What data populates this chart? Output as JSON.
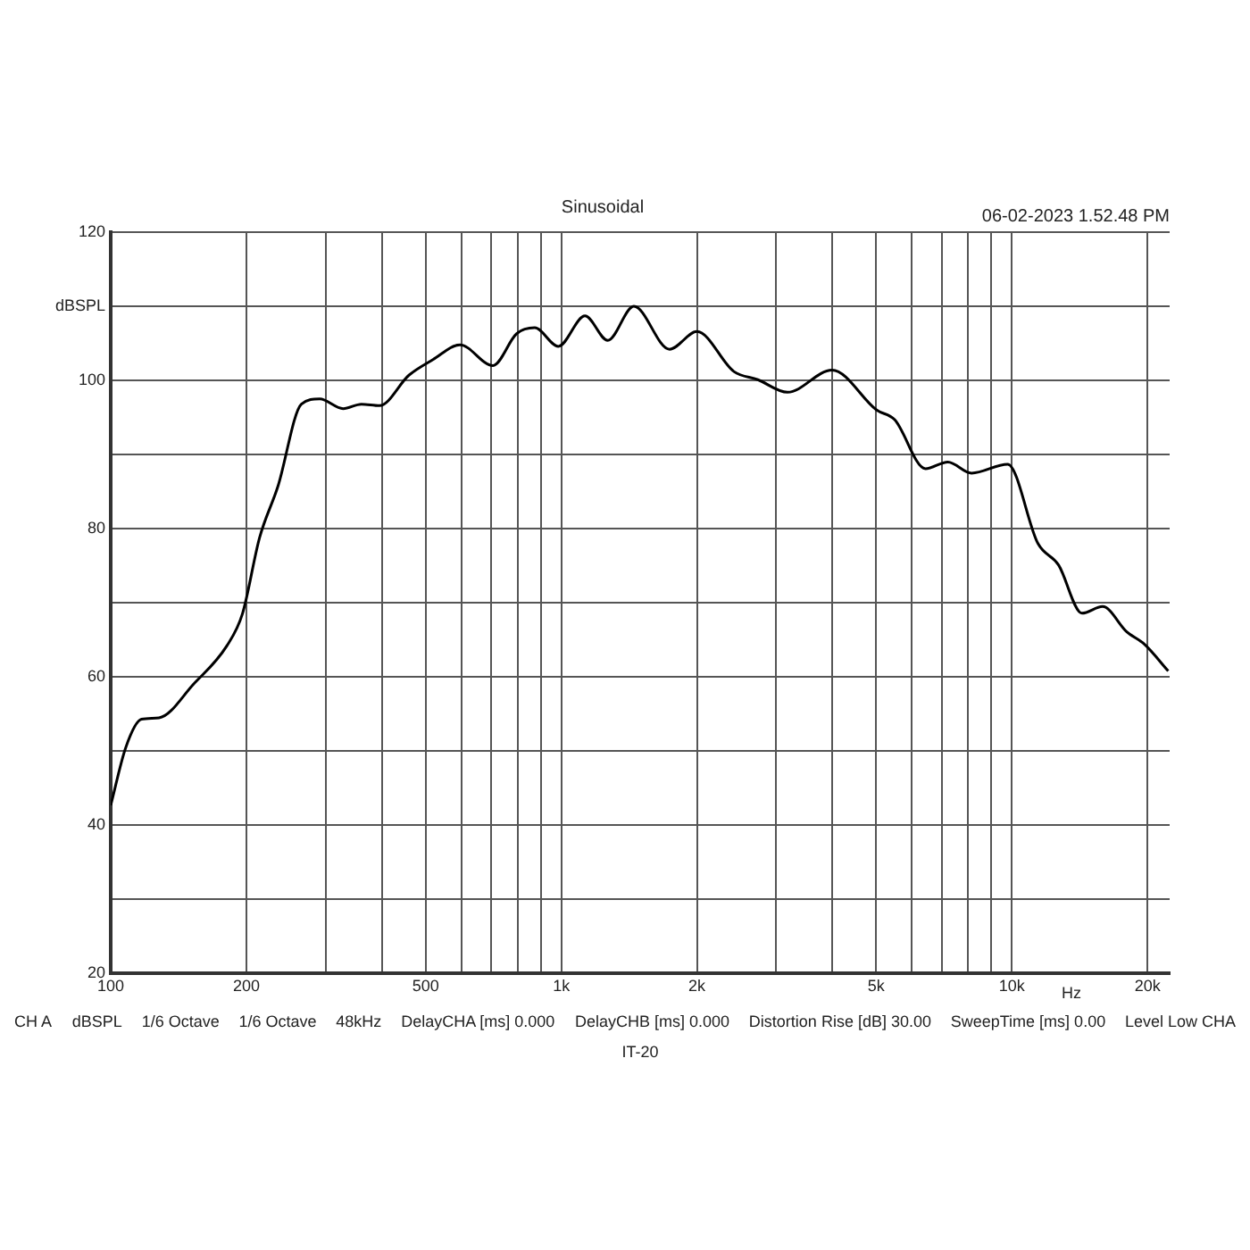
{
  "chart_data": {
    "type": "line",
    "title": "Sinusoidal",
    "xlabel": "Hz",
    "log": "x",
    "grid": true,
    "legend": false,
    "marker": "none",
    "line_style": "solid",
    "annotations": [
      "06-02-2023 1.52.48 PM",
      "CH A",
      "dBSPL",
      "1/6 Octave",
      "1/6 Octave",
      "48kHz",
      "DelayCHA [ms] 0.000",
      "DelayCHB [ms] 0.000",
      "Distortion Rise [dB] 30.00",
      "SweepTime [ms] 0.00",
      "Level Low CHA",
      "IT-20"
    ],
    "xlim": [
      100,
      22400
    ],
    "ylim": [
      20,
      120
    ],
    "xticks": [
      100,
      200,
      {
        "value": 300,
        "label": null
      },
      {
        "value": 400,
        "label": null
      },
      500,
      {
        "value": 600,
        "label": null
      },
      {
        "value": 700,
        "label": null
      },
      {
        "value": 800,
        "label": null
      },
      {
        "value": 900,
        "label": null
      },
      {
        "value": 1000,
        "label": "1k"
      },
      {
        "value": 2000,
        "label": "2k"
      },
      {
        "value": 3000,
        "label": null
      },
      {
        "value": 4000,
        "label": null
      },
      {
        "value": 5000,
        "label": "5k"
      },
      {
        "value": 6000,
        "label": null
      },
      {
        "value": 7000,
        "label": null
      },
      {
        "value": 8000,
        "label": null
      },
      {
        "value": 9000,
        "label": null
      },
      {
        "value": 10000,
        "label": "10k"
      },
      {
        "value": 20000,
        "label": "20k"
      }
    ],
    "yticks": [
      20,
      {
        "value": 30,
        "label": null
      },
      40,
      {
        "value": 50,
        "label": null
      },
      60,
      {
        "value": 70,
        "label": null
      },
      80,
      {
        "value": 90,
        "label": null
      },
      100,
      {
        "value": 110,
        "label": "dBSPL"
      },
      120
    ],
    "series": [
      {
        "color": "#000000",
        "x": [
          100,
          108,
          117,
          128,
          153,
          181,
          196,
          214,
          235,
          265,
          291,
          328,
          360,
          395,
          459,
          519,
          596,
          705,
          796,
          873,
          985,
          1129,
          1268,
          1449,
          1739,
          2000,
          2416,
          2730,
          3177,
          3990,
          5013,
          5495,
          6430,
          7210,
          8140,
          9790,
          11430,
          12700,
          14310,
          15900,
          17990,
          19700,
          22240
        ],
        "values": [
          42.7,
          50.5,
          54.3,
          54.5,
          59.1,
          64.2,
          68.5,
          78.8,
          85.7,
          96.8,
          97.5,
          96.2,
          96.8,
          96.6,
          100.7,
          102.8,
          104.8,
          102.0,
          106.3,
          107.1,
          104.6,
          108.7,
          105.4,
          110.0,
          104.2,
          106.6,
          101.2,
          100.1,
          98.4,
          101.4,
          96.0,
          94.7,
          88.1,
          89.0,
          87.5,
          88.7,
          78.0,
          75.1,
          68.6,
          69.5,
          66.1,
          64.4,
          60.8
        ]
      }
    ]
  }
}
